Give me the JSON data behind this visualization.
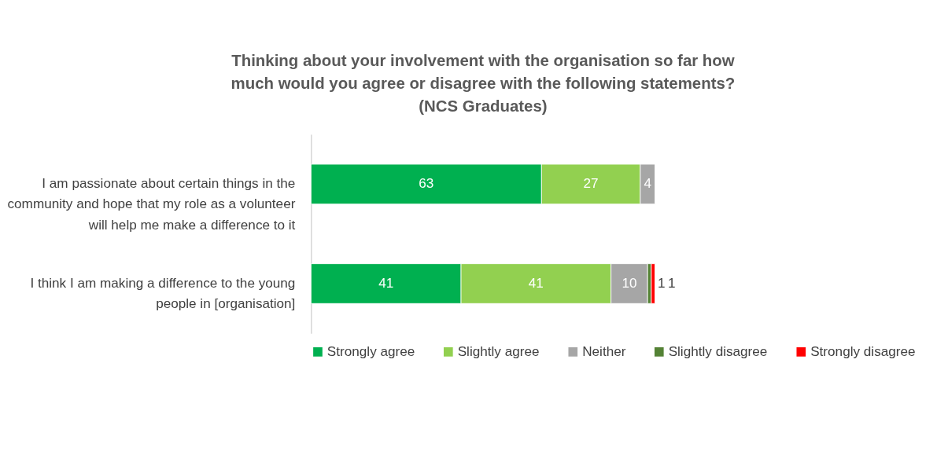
{
  "chart_data": {
    "type": "bar",
    "orientation": "horizontal",
    "stacked": true,
    "tick_labels": false,
    "data_labels": true,
    "legend": "bottom",
    "grid": false,
    "title": "Thinking about your involvement with the organisation so far how much would you agree or disagree with the following statements? (NCS Graduates)",
    "categories": [
      "I am passionate about certain things in the community and hope that my role as a volunteer will help me make a difference to it",
      "I think I am making a difference to the young people in [organisation]"
    ],
    "series": [
      {
        "name": "Strongly agree",
        "color": "#00b050",
        "values": [
          63,
          41
        ]
      },
      {
        "name": "Slightly agree",
        "color": "#92d050",
        "values": [
          27,
          41
        ]
      },
      {
        "name": "Neither",
        "color": "#a6a6a6",
        "values": [
          4,
          10
        ]
      },
      {
        "name": "Slightly disagree",
        "color": "#548235",
        "values": [
          null,
          1
        ]
      },
      {
        "name": "Strongly disagree",
        "color": "#ff0000",
        "values": [
          null,
          1
        ]
      }
    ]
  }
}
